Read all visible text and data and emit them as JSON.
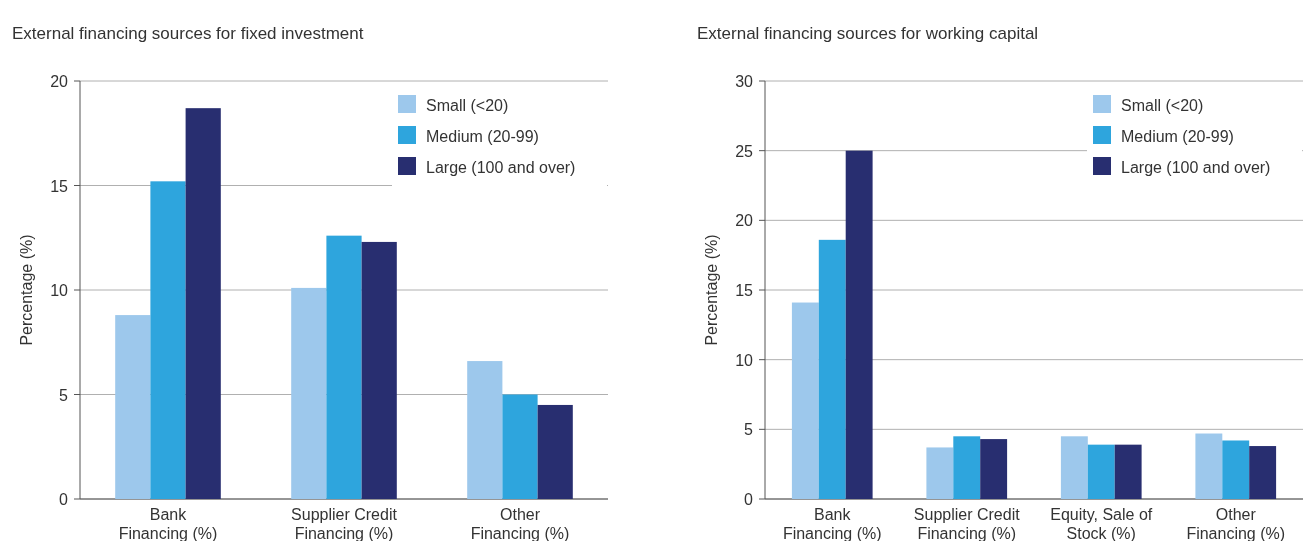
{
  "chart_data": [
    {
      "type": "bar",
      "title": "External financing sources for fixed investment",
      "ylabel": "Percentage (%)",
      "categories": [
        "Bank Financing (%)",
        "Supplier Credit Financing (%)",
        "Other Financing (%)"
      ],
      "series": [
        {
          "name": "Small (<20)",
          "color": "#9dc8ec",
          "values": [
            8.8,
            10.1,
            6.6
          ]
        },
        {
          "name": "Medium (20-99)",
          "color": "#2ea5dd",
          "values": [
            15.2,
            12.6,
            5.0
          ]
        },
        {
          "name": "Large (100 and over)",
          "color": "#282e70",
          "values": [
            18.7,
            12.3,
            4.5
          ]
        }
      ],
      "ylim": [
        0,
        20
      ],
      "yticks": [
        0,
        5,
        10,
        15,
        20
      ],
      "grid": "y",
      "legend": "top right"
    },
    {
      "type": "bar",
      "title": "External financing sources for working capital",
      "ylabel": "Percentage (%)",
      "categories": [
        "Bank Financing (%)",
        "Supplier Credit Financing (%)",
        "Equity, Sale of Stock (%)",
        "Other Financing (%)"
      ],
      "series": [
        {
          "name": "Small (<20)",
          "color": "#9dc8ec",
          "values": [
            14.1,
            3.7,
            4.5,
            4.7
          ]
        },
        {
          "name": "Medium (20-99)",
          "color": "#2ea5dd",
          "values": [
            18.6,
            4.5,
            3.9,
            4.2
          ]
        },
        {
          "name": "Large (100 and over)",
          "color": "#282e70",
          "values": [
            25.0,
            4.3,
            3.9,
            3.8
          ]
        }
      ],
      "ylim": [
        0,
        30
      ],
      "yticks": [
        0,
        5,
        10,
        15,
        20,
        25,
        30
      ],
      "grid": "y",
      "legend": "top right"
    }
  ]
}
